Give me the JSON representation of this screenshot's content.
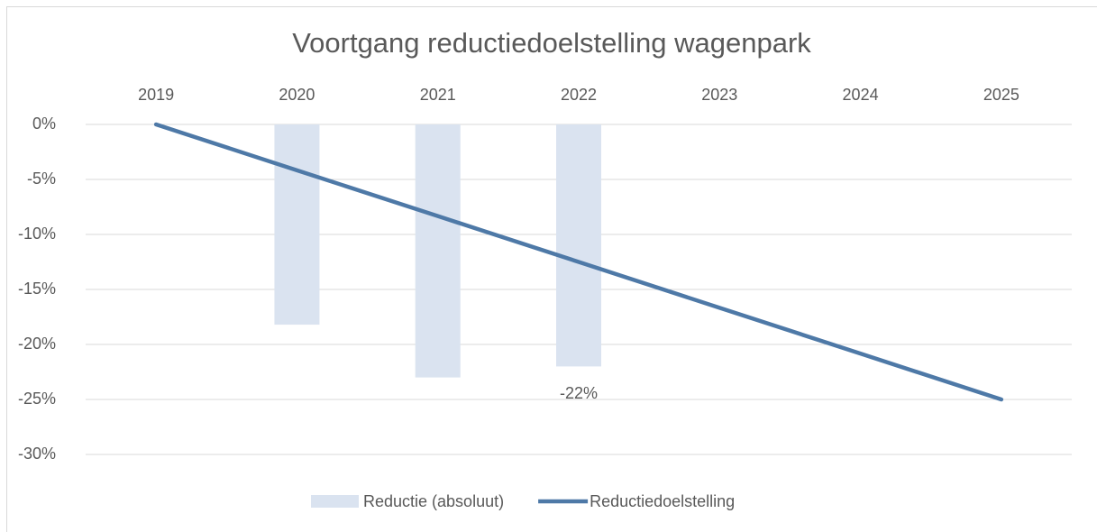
{
  "chart_data": {
    "type": "bar_line",
    "title": "Voortgang reductiedoelstelling wagenpark",
    "categories": [
      "2019",
      "2020",
      "2021",
      "2022",
      "2023",
      "2024",
      "2025"
    ],
    "series": [
      {
        "name": "Reductie (absoluut)",
        "type": "bar",
        "color": "#dae3f0",
        "values": [
          null,
          -18.2,
          -23,
          -22,
          null,
          null,
          null
        ],
        "value_labels": [
          null,
          null,
          null,
          "-22%",
          null,
          null,
          null
        ]
      },
      {
        "name": "Reductiedoelstelling",
        "type": "line",
        "color": "#4e79a7",
        "values": [
          0,
          -4.17,
          -8.33,
          -12.5,
          -16.67,
          -20.83,
          -25
        ]
      }
    ],
    "ylim": [
      -30,
      0
    ],
    "yticks": [
      {
        "value": 0,
        "label": "0%"
      },
      {
        "value": -5,
        "label": "-5%"
      },
      {
        "value": -10,
        "label": "-10%"
      },
      {
        "value": -15,
        "label": "-15%"
      },
      {
        "value": -20,
        "label": "-20%"
      },
      {
        "value": -25,
        "label": "-25%"
      },
      {
        "value": -30,
        "label": "-30%"
      }
    ],
    "grid": true,
    "legend": "bottom"
  }
}
